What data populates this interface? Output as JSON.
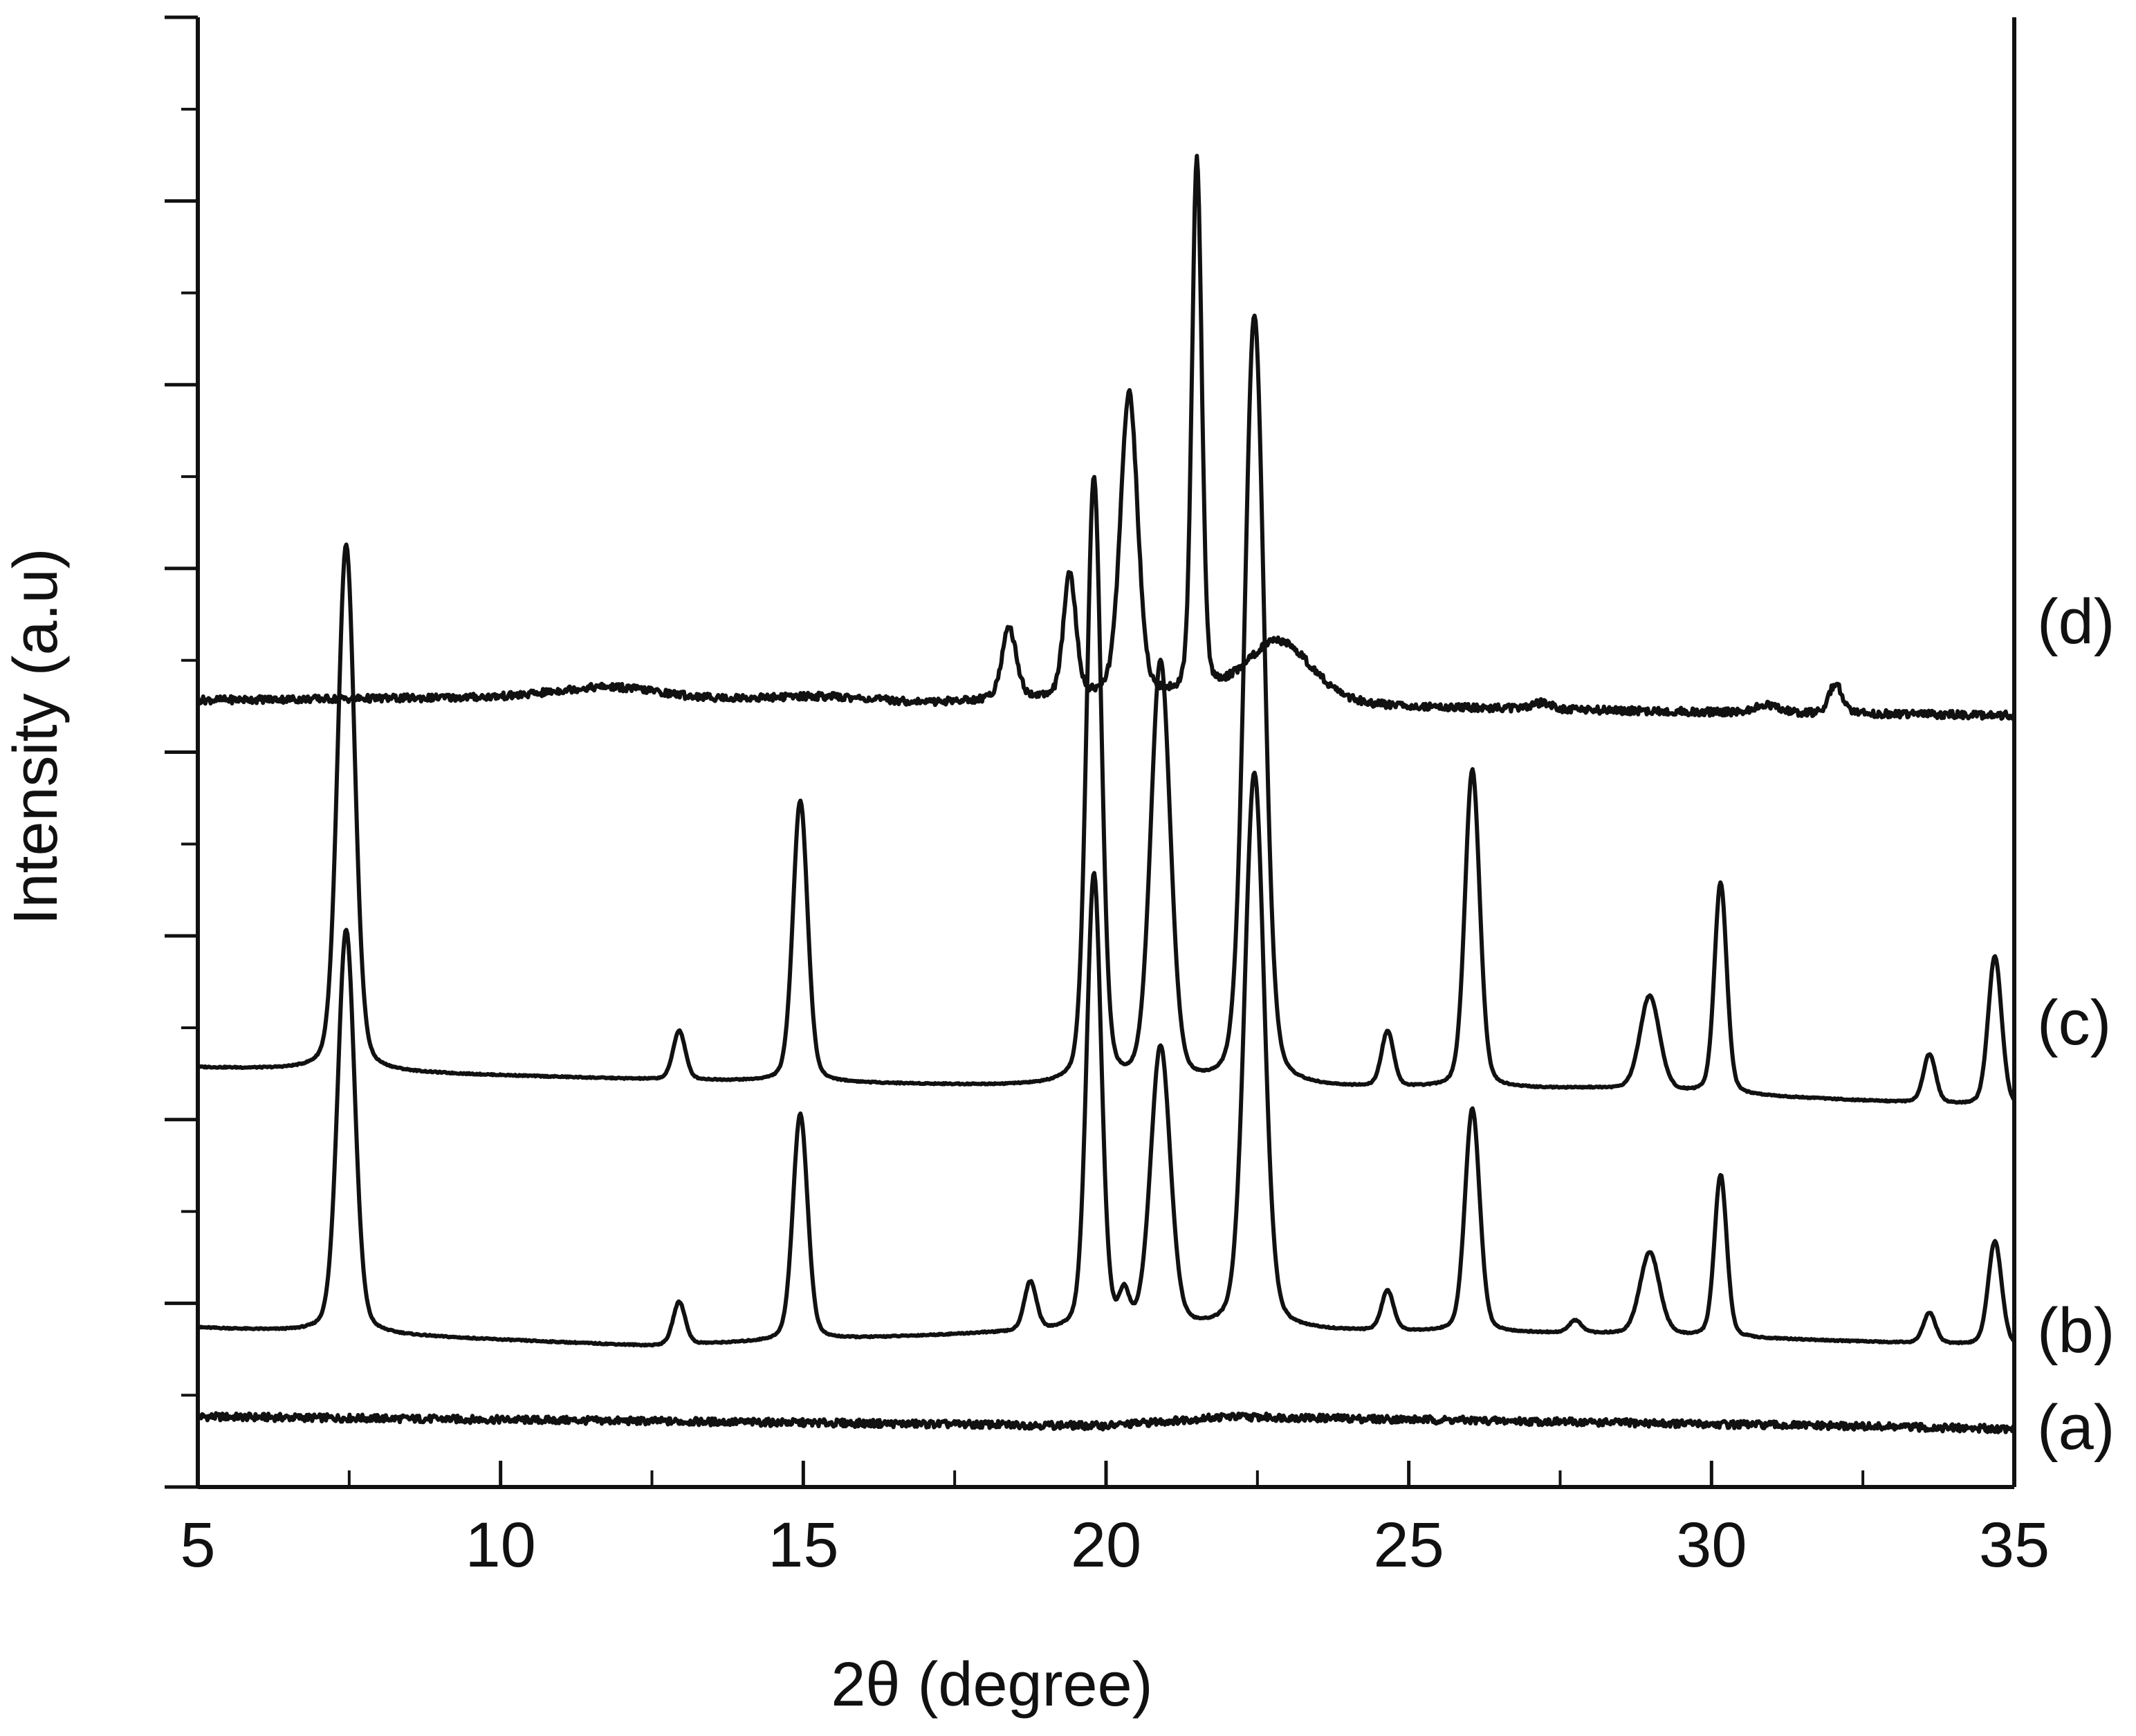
{
  "chart_data": {
    "type": "line",
    "xlabel": "2θ (degree)",
    "ylabel": "Intensity (a.u)",
    "xlim": [
      5,
      35
    ],
    "x_ticks": [
      5,
      10,
      15,
      20,
      25,
      30,
      35
    ],
    "x_tick_labels": [
      "5",
      "10",
      "15",
      "20",
      "25",
      "30",
      "35"
    ],
    "y_tick_labels_shown": false,
    "grid": false,
    "legend": "curve labels at right edge",
    "colors": {
      "line": "#111111",
      "axis": "#111111",
      "background": "#ffffff"
    },
    "series": [
      {
        "name": "(a)",
        "baseline": 0.3,
        "noise": 0.12,
        "baseline_points": [
          [
            5,
            0.3
          ],
          [
            20,
            0.0
          ],
          [
            22,
            0.3
          ],
          [
            35,
            -0.1
          ]
        ],
        "peaks": []
      },
      {
        "name": "(b)",
        "baseline": 3.2,
        "noise": 0.02,
        "baseline_points": [
          [
            5,
            3.2
          ],
          [
            12.5,
            2.6
          ],
          [
            18,
            3.0
          ],
          [
            22,
            3.1
          ],
          [
            28,
            3.0
          ],
          [
            35,
            2.6
          ]
        ],
        "peaks": [
          [
            7.45,
            13.2,
            0.14
          ],
          [
            12.95,
            1.4,
            0.1
          ],
          [
            14.95,
            7.4,
            0.12
          ],
          [
            18.75,
            1.6,
            0.1
          ],
          [
            19.8,
            14.9,
            0.12
          ],
          [
            20.3,
            1.0,
            0.08
          ],
          [
            20.9,
            9.2,
            0.16
          ],
          [
            22.45,
            18.2,
            0.16
          ],
          [
            24.65,
            1.3,
            0.1
          ],
          [
            26.05,
            7.3,
            0.12
          ],
          [
            27.75,
            0.4,
            0.1
          ],
          [
            28.98,
            2.7,
            0.16
          ],
          [
            30.15,
            5.3,
            0.1
          ],
          [
            33.6,
            1.0,
            0.1
          ],
          [
            34.68,
            3.4,
            0.11
          ]
        ]
      },
      {
        "name": "(c)",
        "baseline": 11.7,
        "noise": 0.02,
        "baseline_points": [
          [
            5,
            11.7
          ],
          [
            12.5,
            11.3
          ],
          [
            18,
            11.1
          ],
          [
            22,
            11.0
          ],
          [
            28,
            11.0
          ],
          [
            35,
            10.4
          ]
        ],
        "peaks": [
          [
            7.45,
            17.2,
            0.14
          ],
          [
            12.95,
            1.6,
            0.1
          ],
          [
            14.95,
            9.2,
            0.12
          ],
          [
            19.8,
            19.8,
            0.12
          ],
          [
            20.9,
            13.8,
            0.16
          ],
          [
            22.45,
            25.2,
            0.16
          ],
          [
            24.65,
            1.8,
            0.1
          ],
          [
            26.05,
            10.4,
            0.12
          ],
          [
            28.98,
            3.1,
            0.16
          ],
          [
            30.15,
            6.9,
            0.1
          ],
          [
            33.6,
            1.6,
            0.1
          ],
          [
            34.68,
            4.9,
            0.11
          ]
        ]
      },
      {
        "name": "(d)",
        "baseline": 23.7,
        "noise": 0.12,
        "baseline_points": [
          [
            5,
            23.7
          ],
          [
            11,
            23.8
          ],
          [
            14,
            23.7
          ],
          [
            17,
            23.6
          ],
          [
            20,
            23.8
          ],
          [
            24,
            23.5
          ],
          [
            30,
            23.3
          ],
          [
            35,
            23.2
          ]
        ],
        "peaks": [
          [
            11.8,
            0.35,
            0.8
          ],
          [
            15.3,
            0.15,
            0.8
          ],
          [
            18.4,
            2.3,
            0.12
          ],
          [
            19.4,
            4.0,
            0.1
          ],
          [
            20.38,
            9.9,
            0.14
          ],
          [
            21.5,
            17.5,
            0.08
          ],
          [
            22.85,
            2.0,
            0.55
          ],
          [
            27.2,
            0.2,
            0.15
          ],
          [
            30.9,
            0.25,
            0.2
          ],
          [
            32.05,
            1.0,
            0.1
          ]
        ]
      }
    ]
  }
}
